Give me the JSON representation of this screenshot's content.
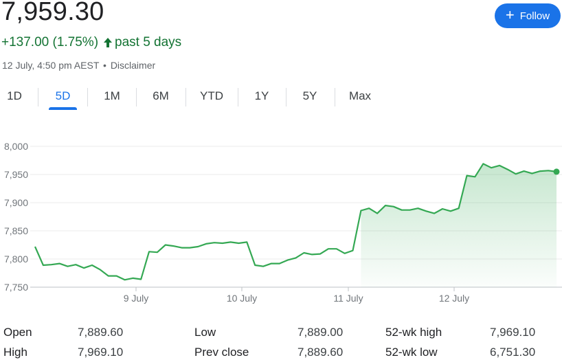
{
  "header": {
    "price": "7,959.30",
    "change": "+137.00 (1.75%)",
    "change_period": "past 5 days",
    "timestamp": "12 July, 4:50 pm AEST",
    "separator": "•",
    "disclaimer": "Disclaimer",
    "positive_color": "#137333",
    "arrow_icon": "arrow-up-icon"
  },
  "follow": {
    "label": "Follow",
    "icon": "plus-icon",
    "color": "#1a73e8"
  },
  "tabs": [
    {
      "label": "1D",
      "active": false
    },
    {
      "label": "5D",
      "active": true
    },
    {
      "label": "1M",
      "active": false
    },
    {
      "label": "6M",
      "active": false
    },
    {
      "label": "YTD",
      "active": false
    },
    {
      "label": "1Y",
      "active": false
    },
    {
      "label": "5Y",
      "active": false
    },
    {
      "label": "Max",
      "active": false
    }
  ],
  "chart_data": {
    "type": "line",
    "title": "",
    "xlabel": "",
    "ylabel": "",
    "ylim": [
      7750,
      8000
    ],
    "y_ticks": [
      "8,000",
      "7,950",
      "7,900",
      "7,850",
      "7,800",
      "7,750"
    ],
    "x_ticks": [
      "9 July",
      "10 July",
      "11 July",
      "12 July"
    ],
    "grid": true,
    "line_color": "#34a853",
    "series": [
      {
        "values": [
          7822,
          7789,
          7790,
          7792,
          7787,
          7790,
          7784,
          7789,
          7781,
          7770,
          7770,
          7763,
          7766,
          7764,
          7813,
          7812,
          7825,
          7823,
          7820,
          7820,
          7822,
          7827,
          7829,
          7828,
          7830,
          7828,
          7830,
          7789,
          7787,
          7792,
          7792,
          7798,
          7802,
          7811,
          7808,
          7809,
          7818,
          7818,
          7810,
          7815,
          7886,
          7890,
          7881,
          7895,
          7893,
          7887,
          7887,
          7890,
          7885,
          7881,
          7889,
          7885,
          7890,
          7948,
          7946,
          7969,
          7962,
          7966,
          7959,
          7951,
          7956,
          7952,
          7956,
          7957,
          7955
        ]
      }
    ]
  },
  "stats": [
    {
      "label": "Open",
      "value": "7,889.60"
    },
    {
      "label": "High",
      "value": "7,969.10"
    },
    {
      "label": "Low",
      "value": "7,889.00"
    },
    {
      "label": "Prev close",
      "value": "7,889.60"
    },
    {
      "label": "52-wk high",
      "value": "7,969.10"
    },
    {
      "label": "52-wk low",
      "value": "6,751.30"
    }
  ]
}
